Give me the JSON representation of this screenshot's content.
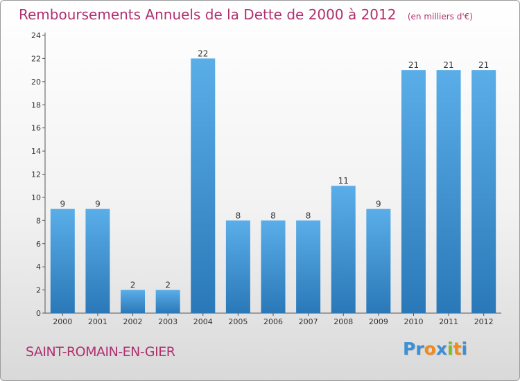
{
  "header": {
    "title": "Remboursements Annuels de la Dette de 2000 à 2012",
    "subtitle": "(en milliers d'€)"
  },
  "footer": {
    "city": "SAINT-ROMAIN-EN-GIER",
    "logo": [
      "P",
      "r",
      "o",
      "x",
      "i",
      "t",
      "i"
    ]
  },
  "colors": {
    "title": "#b0306e",
    "bar_top": "#5aaee8",
    "bar_bottom": "#2a78b8",
    "logo": [
      "#3a8fd6",
      "#3a8fd6",
      "#f08a1c",
      "#3a8fd6",
      "#7fb82a",
      "#f08a1c",
      "#3a8fd6"
    ]
  },
  "chart_data": {
    "type": "bar",
    "title": "Remboursements Annuels de la Dette de 2000 à 2012",
    "subtitle": "(en milliers d'€)",
    "categories": [
      "2000",
      "2001",
      "2002",
      "2003",
      "2004",
      "2005",
      "2006",
      "2007",
      "2008",
      "2009",
      "2010",
      "2011",
      "2012"
    ],
    "values": [
      9,
      9,
      2,
      2,
      22,
      8,
      8,
      8,
      11,
      9,
      21,
      21,
      21
    ],
    "ylim": [
      0,
      24
    ],
    "yticks": [
      0,
      2,
      4,
      6,
      8,
      10,
      12,
      14,
      16,
      18,
      20,
      22,
      24
    ],
    "grid": false,
    "legend": "none"
  }
}
